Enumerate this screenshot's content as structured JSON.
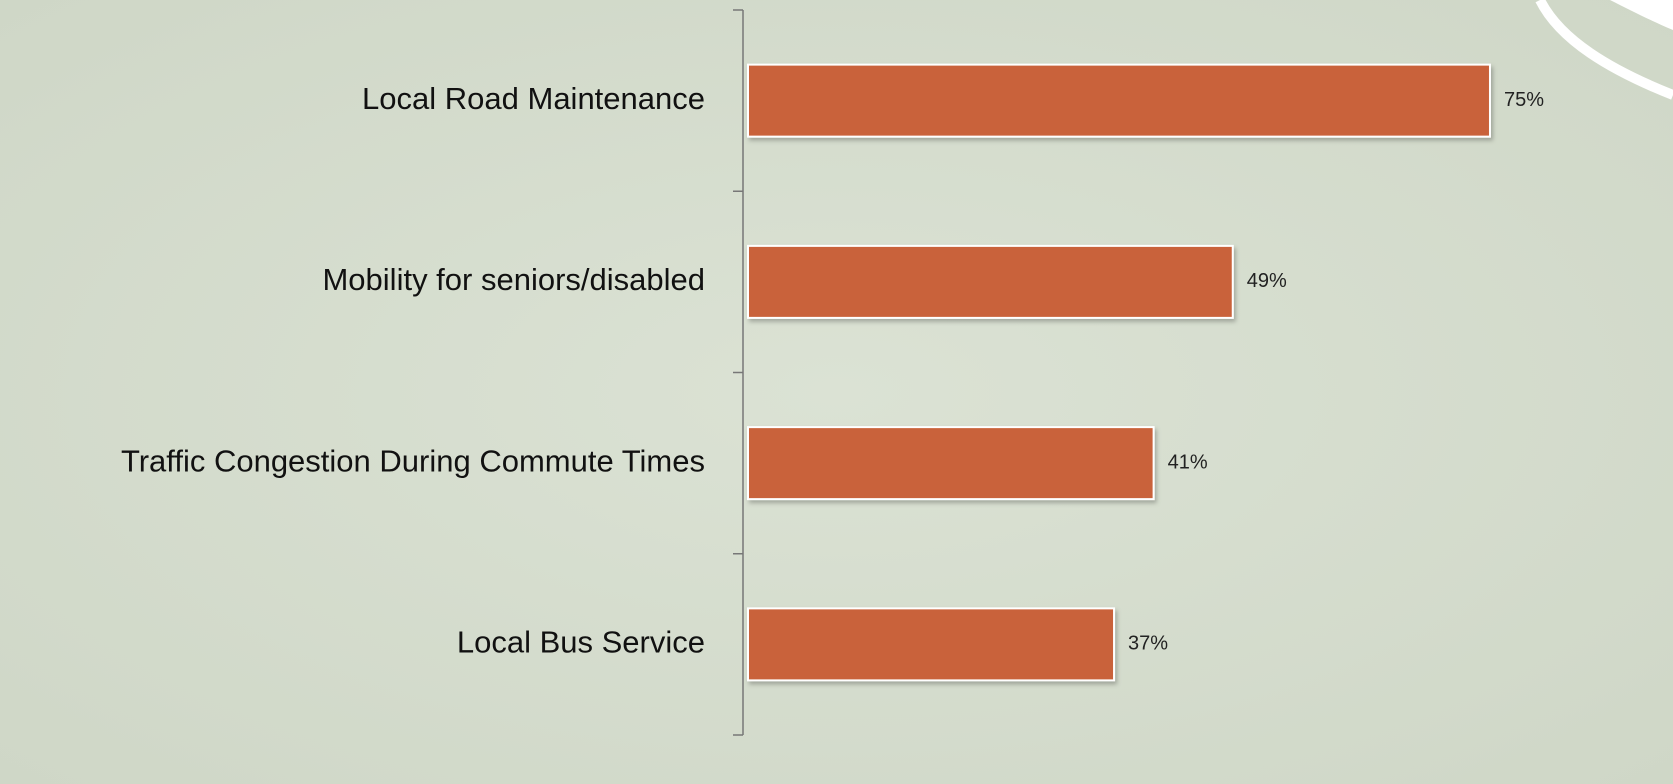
{
  "chart_data": {
    "type": "bar",
    "orientation": "horizontal",
    "categories": [
      "Local Road Maintenance",
      "Mobility for seniors/disabled",
      "Traffic Congestion During Commute Times",
      "Local Bus Service"
    ],
    "values": [
      75,
      49,
      41,
      37
    ],
    "value_labels": [
      "75%",
      "49%",
      "41%",
      "37%"
    ],
    "color": "#c9623a"
  }
}
